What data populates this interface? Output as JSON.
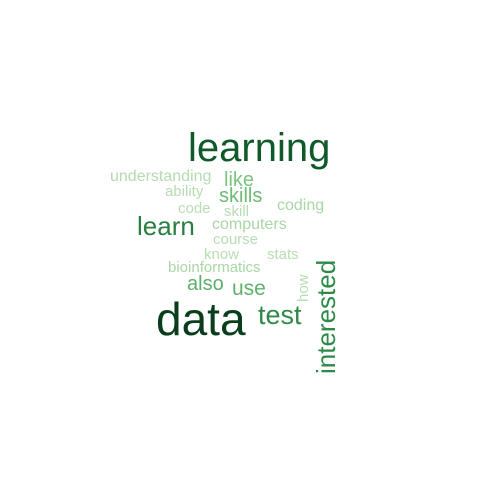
{
  "words": {
    "learning": {
      "text": "learning",
      "color": "#0f5a2a"
    },
    "data": {
      "text": "data",
      "color": "#0a3d1b"
    },
    "interested": {
      "text": "interested",
      "color": "#2d8a47"
    },
    "learn": {
      "text": "learn",
      "color": "#2a7e41"
    },
    "test": {
      "text": "test",
      "color": "#2f8a4a"
    },
    "skills": {
      "text": "skills",
      "color": "#6dbb74"
    },
    "like": {
      "text": "like",
      "color": "#7cc482"
    },
    "also": {
      "text": "also",
      "color": "#5db06a"
    },
    "use": {
      "text": "use",
      "color": "#5fb16b"
    },
    "understanding": {
      "text": "understanding",
      "color": "#b4dcb0"
    },
    "ability": {
      "text": "ability",
      "color": "#b6ddb2"
    },
    "code": {
      "text": "code",
      "color": "#b8deb4"
    },
    "skill": {
      "text": "skill",
      "color": "#b8deb4"
    },
    "coding": {
      "text": "coding",
      "color": "#a9d6a6"
    },
    "computers": {
      "text": "computers",
      "color": "#a9d6a6"
    },
    "course": {
      "text": "course",
      "color": "#b8deb4"
    },
    "know": {
      "text": "know",
      "color": "#b8deb4"
    },
    "stats": {
      "text": "stats",
      "color": "#b8deb4"
    },
    "bioinformatics": {
      "text": "bioinformatics",
      "color": "#a9d6a6"
    },
    "how": {
      "text": "how",
      "color": "#b8deb4"
    }
  }
}
